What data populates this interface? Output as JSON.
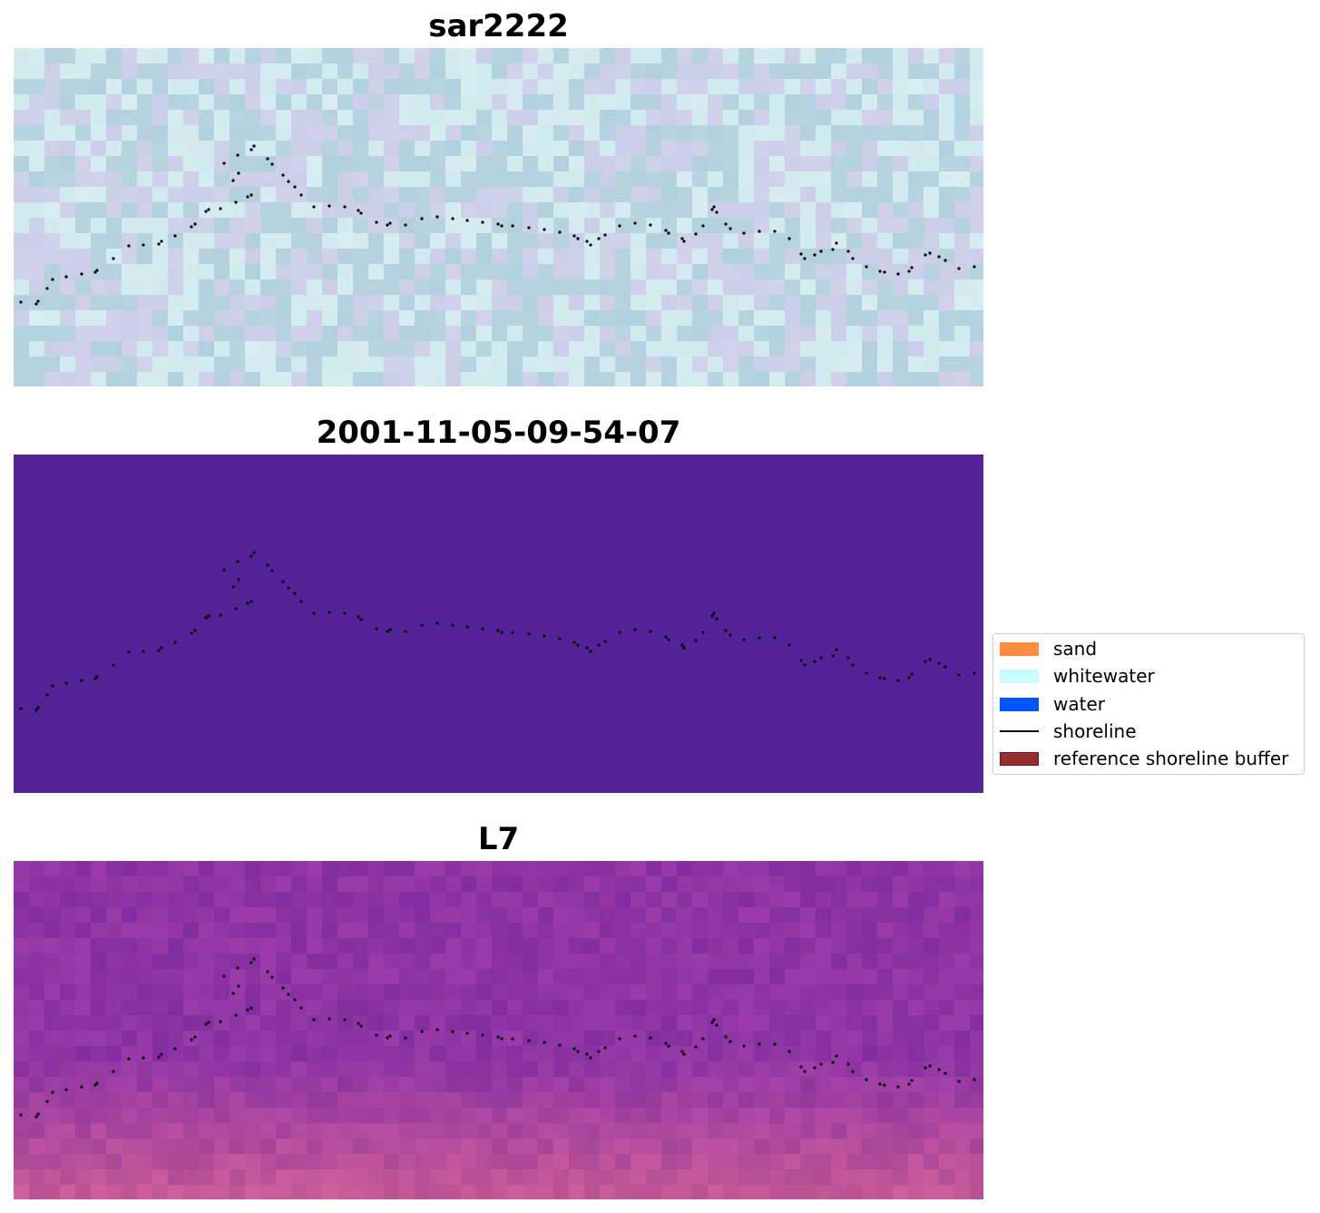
{
  "panels": [
    {
      "title": "sar2222",
      "style": "sar"
    },
    {
      "title": "2001-11-05-09-54-07",
      "style": "classified",
      "fill_color": "#532397"
    },
    {
      "title": "L7",
      "style": "l7"
    }
  ],
  "legend": {
    "items": [
      {
        "label": "sand",
        "type": "patch",
        "color": "#ff8c3f",
        "edge": "#ff8c3f"
      },
      {
        "label": "whitewater",
        "type": "patch",
        "color": "#c8fbff",
        "edge": "#c8fbff"
      },
      {
        "label": "water",
        "type": "patch",
        "color": "#0055ff",
        "edge": "#0055ff"
      },
      {
        "label": "shoreline",
        "type": "line",
        "color": "#000000"
      },
      {
        "label": "reference shoreline buffer",
        "type": "patch",
        "color": "#9a2d2d",
        "edge": "#6b1515"
      }
    ]
  },
  "shoreline": {
    "color": "#000000",
    "points": [
      [
        8,
        280
      ],
      [
        25,
        282
      ],
      [
        27,
        279
      ],
      [
        37,
        265
      ],
      [
        43,
        255
      ],
      [
        58,
        252
      ],
      [
        75,
        249
      ],
      [
        90,
        247
      ],
      [
        92,
        245
      ],
      [
        110,
        232
      ],
      [
        127,
        218
      ],
      [
        143,
        217
      ],
      [
        160,
        216
      ],
      [
        163,
        213
      ],
      [
        178,
        207
      ],
      [
        196,
        197
      ],
      [
        200,
        194
      ],
      [
        212,
        180
      ],
      [
        215,
        178
      ],
      [
        228,
        177
      ],
      [
        245,
        170
      ],
      [
        258,
        164
      ],
      [
        262,
        162
      ],
      [
        248,
        138
      ],
      [
        242,
        146
      ],
      [
        232,
        127
      ],
      [
        247,
        118
      ],
      [
        262,
        112
      ],
      [
        265,
        108
      ],
      [
        280,
        122
      ],
      [
        285,
        128
      ],
      [
        297,
        140
      ],
      [
        303,
        147
      ],
      [
        310,
        153
      ],
      [
        317,
        162
      ],
      [
        331,
        175
      ],
      [
        348,
        174
      ],
      [
        365,
        175
      ],
      [
        380,
        179
      ],
      [
        383,
        182
      ],
      [
        400,
        192
      ],
      [
        412,
        195
      ],
      [
        415,
        193
      ],
      [
        432,
        195
      ],
      [
        450,
        188
      ],
      [
        467,
        186
      ],
      [
        484,
        188
      ],
      [
        500,
        190
      ],
      [
        517,
        192
      ],
      [
        534,
        194
      ],
      [
        538,
        196
      ],
      [
        550,
        196
      ],
      [
        568,
        198
      ],
      [
        585,
        200
      ],
      [
        602,
        203
      ],
      [
        618,
        207
      ],
      [
        622,
        210
      ],
      [
        632,
        213
      ],
      [
        636,
        217
      ],
      [
        645,
        210
      ],
      [
        652,
        206
      ],
      [
        668,
        196
      ],
      [
        685,
        193
      ],
      [
        702,
        195
      ],
      [
        719,
        201
      ],
      [
        722,
        204
      ],
      [
        737,
        210
      ],
      [
        739,
        213
      ],
      [
        752,
        205
      ],
      [
        760,
        196
      ],
      [
        770,
        178
      ],
      [
        772,
        175
      ],
      [
        775,
        181
      ],
      [
        785,
        194
      ],
      [
        790,
        199
      ],
      [
        805,
        204
      ],
      [
        822,
        202
      ],
      [
        839,
        202
      ],
      [
        855,
        210
      ],
      [
        868,
        227
      ],
      [
        872,
        232
      ],
      [
        883,
        228
      ],
      [
        890,
        224
      ],
      [
        903,
        222
      ],
      [
        907,
        215
      ],
      [
        920,
        224
      ],
      [
        925,
        232
      ],
      [
        940,
        241
      ],
      [
        955,
        246
      ],
      [
        960,
        247
      ],
      [
        975,
        249
      ],
      [
        987,
        246
      ],
      [
        990,
        242
      ],
      [
        1005,
        228
      ],
      [
        1010,
        226
      ],
      [
        1020,
        230
      ],
      [
        1027,
        234
      ],
      [
        1042,
        243
      ],
      [
        1059,
        241
      ]
    ]
  },
  "colors": {
    "sar_base": "#bcd6e2",
    "l7_base": "#8a3da0",
    "classified_fill": "#532397"
  }
}
